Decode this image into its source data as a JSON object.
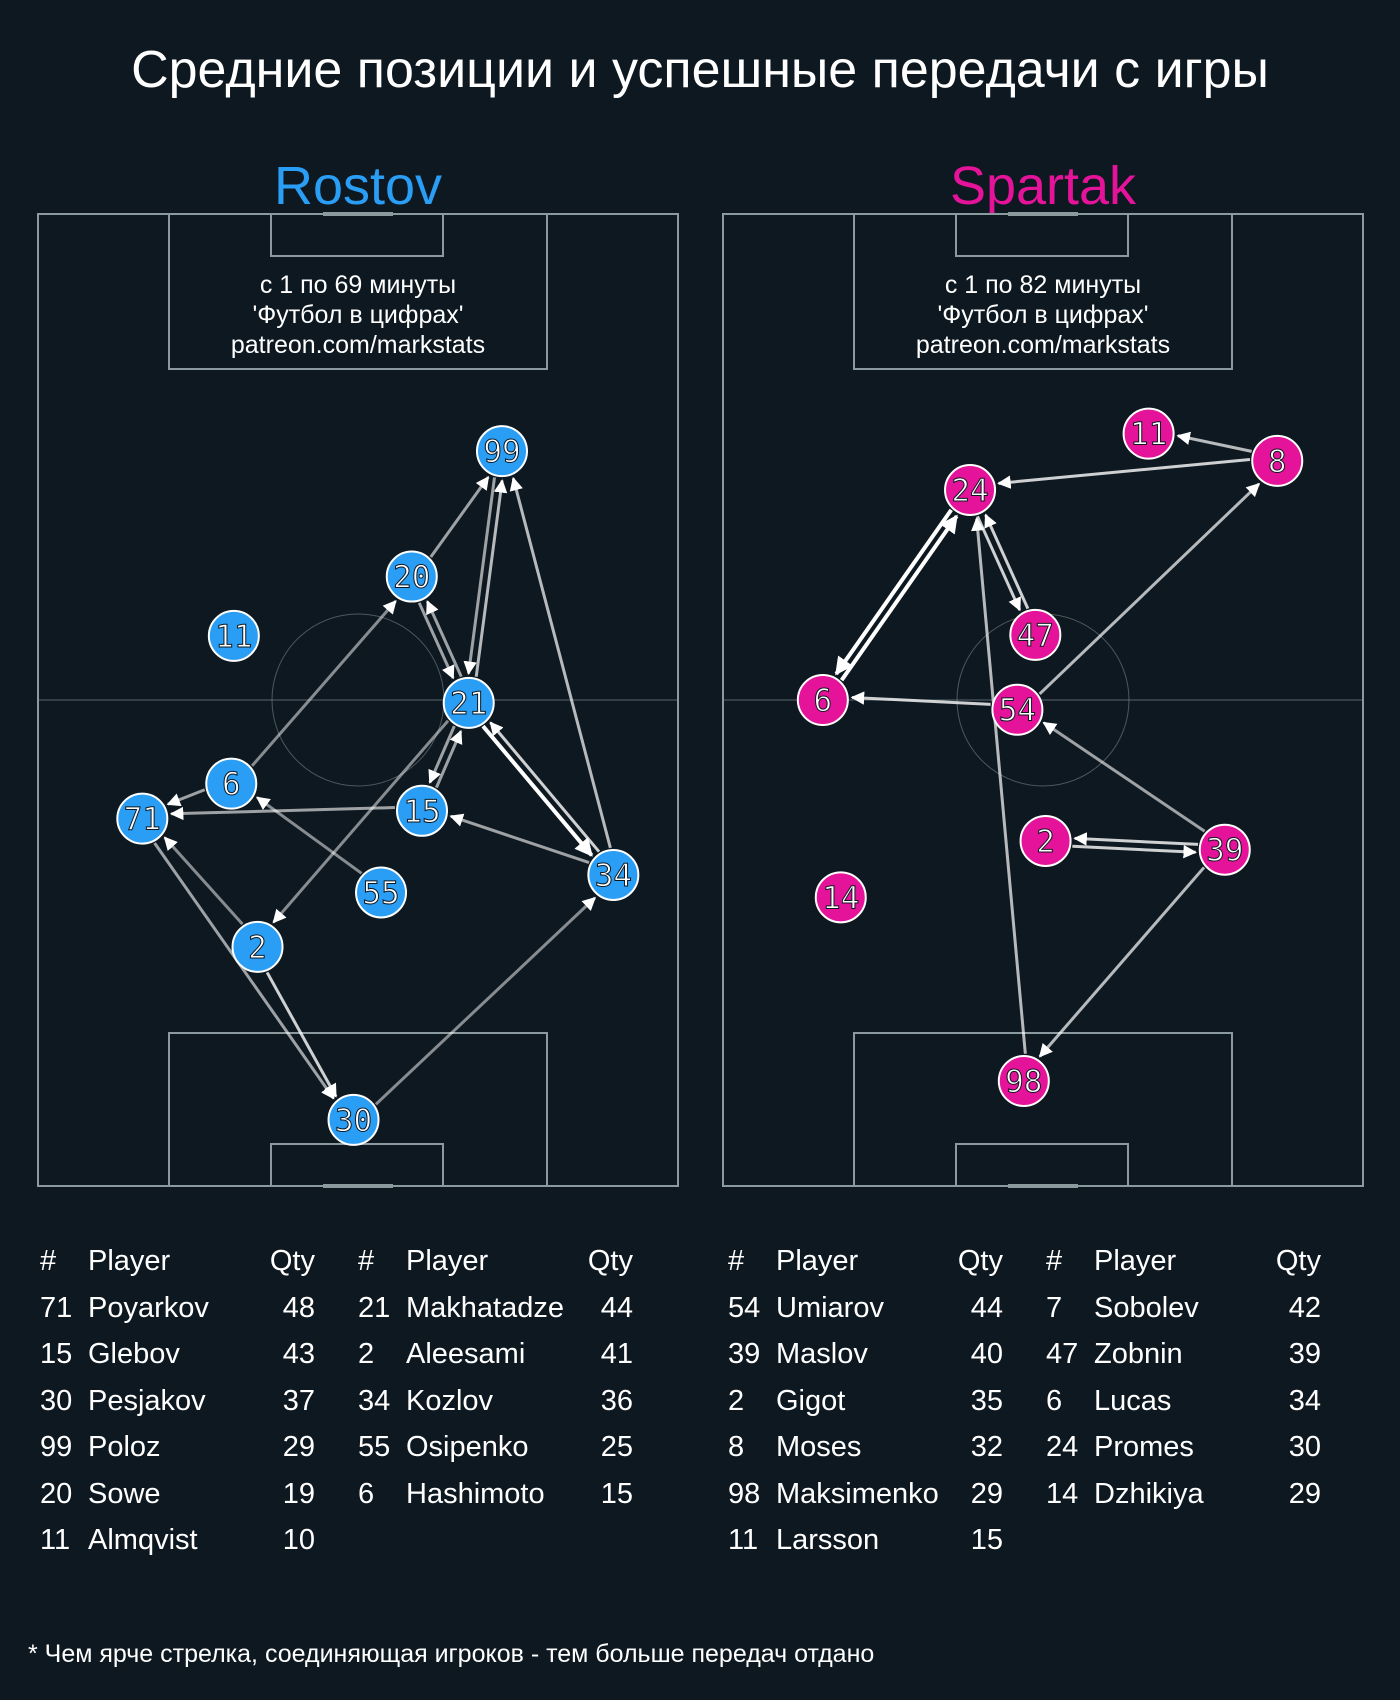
{
  "title": "Средние позиции и успешные передачи с игры",
  "footnote": "* Чем ярче стрелка, соединяющая игроков - тем больше передач отдано",
  "colors": {
    "background": "#0e1820",
    "pitch_lines": "#8a9a9e",
    "rostov": "#2a9df4",
    "spartak": "#e5139a",
    "arrow": "#ffffff"
  },
  "table_headers": {
    "num": "#",
    "player": "Player",
    "qty": "Qty"
  },
  "chart_data": [
    {
      "type": "scatter",
      "team": "Rostov",
      "subtitle_lines": [
        "с 1 по 69 минуты",
        "'Футбол в цифрах'",
        "patreon.com/markstats"
      ],
      "players": [
        {
          "num": "99",
          "name": "Poloz",
          "qty": "29",
          "x": 72.5,
          "y": 75.6
        },
        {
          "num": "20",
          "name": "Sowe",
          "qty": "19",
          "x": 58.4,
          "y": 62.7
        },
        {
          "num": "11",
          "name": "Almqvist",
          "qty": "10",
          "x": 30.6,
          "y": 56.6
        },
        {
          "num": "21",
          "name": "Makhatadze",
          "qty": "44",
          "x": 67.3,
          "y": 49.7
        },
        {
          "num": "6",
          "name": "Hashimoto",
          "qty": "15",
          "x": 30.2,
          "y": 41.4
        },
        {
          "num": "71",
          "name": "Poyarkov",
          "qty": "48",
          "x": 16.3,
          "y": 37.8
        },
        {
          "num": "15",
          "name": "Glebov",
          "qty": "43",
          "x": 60.0,
          "y": 38.6
        },
        {
          "num": "55",
          "name": "Osipenko",
          "qty": "25",
          "x": 53.6,
          "y": 30.2
        },
        {
          "num": "34",
          "name": "Kozlov",
          "qty": "36",
          "x": 89.9,
          "y": 32.0
        },
        {
          "num": "2",
          "name": "Aleesami",
          "qty": "41",
          "x": 34.3,
          "y": 24.6
        },
        {
          "num": "30",
          "name": "Pesjakov",
          "qty": "37",
          "x": 49.3,
          "y": 6.8
        }
      ],
      "table_columns": [
        [
          "71",
          "15",
          "30",
          "99",
          "20",
          "11"
        ],
        [
          "21",
          "2",
          "34",
          "55",
          "6"
        ]
      ],
      "passes": [
        {
          "from": "20",
          "to": "99",
          "alpha": 0.6
        },
        {
          "from": "21",
          "to": "99",
          "alpha": 0.7
        },
        {
          "from": "99",
          "to": "21",
          "alpha": 0.6
        },
        {
          "from": "34",
          "to": "99",
          "alpha": 0.7
        },
        {
          "from": "20",
          "to": "21",
          "alpha": 0.6
        },
        {
          "from": "21",
          "to": "20",
          "alpha": 0.6
        },
        {
          "from": "21",
          "to": "34",
          "alpha": 1.0
        },
        {
          "from": "34",
          "to": "21",
          "alpha": 0.8
        },
        {
          "from": "21",
          "to": "34",
          "alpha": 0.6
        },
        {
          "from": "15",
          "to": "21",
          "alpha": 0.6
        },
        {
          "from": "21",
          "to": "15",
          "alpha": 0.6
        },
        {
          "from": "21",
          "to": "2",
          "alpha": 0.5
        },
        {
          "from": "6",
          "to": "20",
          "alpha": 0.5
        },
        {
          "from": "6",
          "to": "71",
          "alpha": 0.6
        },
        {
          "from": "15",
          "to": "71",
          "alpha": 0.6
        },
        {
          "from": "55",
          "to": "6",
          "alpha": 0.5
        },
        {
          "from": "34",
          "to": "15",
          "alpha": 0.6
        },
        {
          "from": "2",
          "to": "71",
          "alpha": 0.5
        },
        {
          "from": "71",
          "to": "30",
          "alpha": 0.6
        },
        {
          "from": "2",
          "to": "30",
          "alpha": 0.8
        },
        {
          "from": "30",
          "to": "34",
          "alpha": 0.5
        }
      ]
    },
    {
      "type": "scatter",
      "team": "Spartak",
      "subtitle_lines": [
        "с 1 по 82 минуты",
        "'Футбол в цифрах'",
        "patreon.com/markstats"
      ],
      "players": [
        {
          "num": "11",
          "name": "Larsson",
          "qty": "15",
          "x": 66.5,
          "y": 77.4
        },
        {
          "num": "8",
          "name": "Moses",
          "qty": "32",
          "x": 86.6,
          "y": 74.6
        },
        {
          "num": "24",
          "name": "Promes",
          "qty": "30",
          "x": 38.6,
          "y": 71.6
        },
        {
          "num": "47",
          "name": "Zobnin",
          "qty": "39",
          "x": 48.8,
          "y": 56.7
        },
        {
          "num": "6",
          "name": "Lucas",
          "qty": "34",
          "x": 15.6,
          "y": 50.0
        },
        {
          "num": "54",
          "name": "Umiarov",
          "qty": "44",
          "x": 46.0,
          "y": 49.0
        },
        {
          "num": "2",
          "name": "Gigot",
          "qty": "35",
          "x": 50.4,
          "y": 35.5
        },
        {
          "num": "39",
          "name": "Maslov",
          "qty": "40",
          "x": 78.4,
          "y": 34.6
        },
        {
          "num": "14",
          "name": "Dzhikiya",
          "qty": "29",
          "x": 18.4,
          "y": 29.7
        },
        {
          "num": "98",
          "name": "Maksimenko",
          "qty": "29",
          "x": 47.0,
          "y": 10.8
        }
      ],
      "table_columns": [
        [
          "54",
          "39",
          "2",
          "8",
          "98",
          "11"
        ],
        [
          "7",
          "47",
          "6",
          "24",
          "14"
        ]
      ],
      "extra_rows": [
        {
          "num": "7",
          "name": "Sobolev",
          "qty": "42"
        }
      ],
      "passes": [
        {
          "from": "8",
          "to": "24",
          "alpha": 0.8
        },
        {
          "from": "8",
          "to": "11",
          "alpha": 0.7
        },
        {
          "from": "24",
          "to": "6",
          "alpha": 1.0
        },
        {
          "from": "6",
          "to": "24",
          "alpha": 1.0
        },
        {
          "from": "24",
          "to": "47",
          "alpha": 0.8
        },
        {
          "from": "47",
          "to": "24",
          "alpha": 0.8
        },
        {
          "from": "54",
          "to": "6",
          "alpha": 0.8
        },
        {
          "from": "54",
          "to": "8",
          "alpha": 0.7
        },
        {
          "from": "98",
          "to": "24",
          "alpha": 0.7
        },
        {
          "from": "39",
          "to": "54",
          "alpha": 0.6
        },
        {
          "from": "2",
          "to": "39",
          "alpha": 0.8
        },
        {
          "from": "39",
          "to": "2",
          "alpha": 0.8
        },
        {
          "from": "39",
          "to": "98",
          "alpha": 0.7
        }
      ]
    }
  ]
}
